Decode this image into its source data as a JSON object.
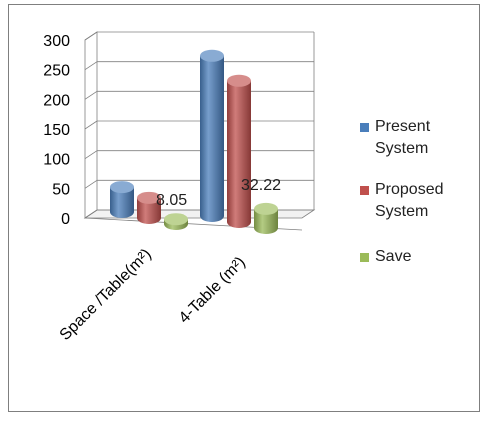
{
  "chart_data": {
    "type": "bar",
    "categories": [
      "Space /Table(m²)",
      "4-Table (m²)"
    ],
    "series": [
      {
        "name": "Present System",
        "values": [
          42.0,
          270.0
        ],
        "color": "#4a7ebb"
      },
      {
        "name": "Proposed System",
        "values": [
          34.0,
          238.0
        ],
        "color": "#c0504d"
      },
      {
        "name": "Save",
        "values": [
          8.05,
          32.22
        ],
        "color": "#9bbb59"
      }
    ],
    "data_labels": [
      {
        "series": 2,
        "category": 0,
        "text": "8.05"
      },
      {
        "series": 2,
        "category": 1,
        "text": "32.22"
      }
    ],
    "y_ticks": [
      "0",
      "50",
      "100",
      "150",
      "200",
      "250",
      "300"
    ],
    "ylim": [
      0,
      300
    ],
    "grid": true,
    "legend_position": "right",
    "three_d": true
  }
}
